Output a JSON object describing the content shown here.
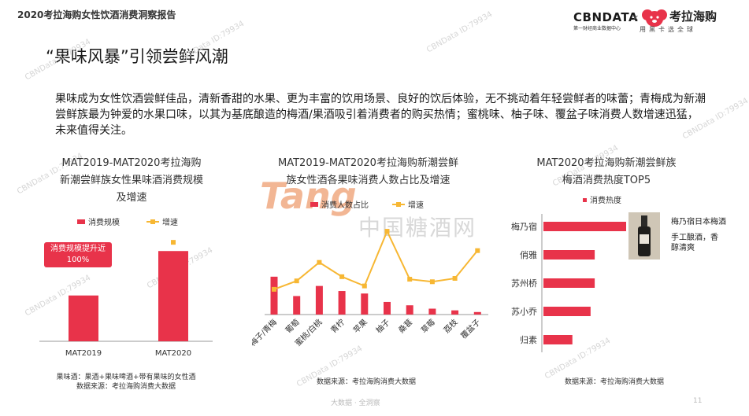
{
  "header": {
    "report_title": "2020考拉海购女性饮酒消费洞察报告",
    "cbn_logo": "CBNDATA",
    "cbn_sub": "第一财经商业数据中心",
    "logo_separator": "×",
    "brand_name": "考拉海购",
    "brand_slogan": "用黑卡选全球"
  },
  "page_heading": "“果味风暴”引领尝鲜风潮",
  "intro_text": "果味成为女性饮酒尝鲜佳品，清新香甜的水果、更为丰富的饮用场景、良好的饮后体验，无不挑动着年轻尝鲜者的味蕾；青梅成为新潮尝鲜族最为钟爱的水果口味，以其为基底酿造的梅酒/果酒吸引着消费者的购买热情；蜜桃味、柚子味、覆盆子味消费人数增速迅猛，未来值得关注。",
  "chart1": {
    "title_lines": [
      "MAT2019-MAT2020考拉海购",
      "新潮尝鲜族女性果味酒消费规模",
      "及增速"
    ],
    "callout": "消费规模提升近100%",
    "note_lines": [
      "果味酒：果酒+果味啤酒+带有果味的女性酒",
      "数据来源：考拉海购消费大数据"
    ]
  },
  "chart2": {
    "title_lines": [
      "MAT2019-MAT2020考拉海购新潮尝鲜",
      "族女性酒各果味消费人数占比及增速"
    ],
    "source": "数据来源：考拉海购消费大数据"
  },
  "chart3": {
    "title_lines": [
      "MAT2020考拉海购新潮尝鲜族",
      "梅酒消费热度TOP5"
    ],
    "product_name": "梅乃宿日本梅酒",
    "product_desc": "手工酿酒，香醇清爽",
    "source": "数据来源：考拉海购消费大数据"
  },
  "chart_data": [
    {
      "type": "bar",
      "categories": [
        "MAT2019",
        "MAT2020"
      ],
      "series": [
        {
          "name": "消费规模",
          "values": [
            1.0,
            1.97
          ]
        },
        {
          "name": "增速",
          "values": [
            null,
            2.16
          ]
        }
      ],
      "ylim": [
        0,
        2.3
      ],
      "legend": "top",
      "colors": {
        "bar": "#e8334a",
        "line": "#f7b733"
      }
    },
    {
      "type": "bar",
      "categories": [
        "梅子/青梅",
        "葡萄",
        "蜜桃/白桃",
        "青柠",
        "苹果",
        "柚子",
        "桑葚",
        "草莓",
        "荔枝",
        "覆盆子"
      ],
      "series": [
        {
          "name": "消费人数占比",
          "values": [
            0.45,
            0.22,
            0.34,
            0.28,
            0.25,
            0.15,
            0.11,
            0.07,
            0.05,
            0.03
          ]
        },
        {
          "name": "增速",
          "values": [
            0.3,
            0.4,
            0.62,
            0.45,
            0.34,
            0.99,
            0.42,
            0.39,
            0.43,
            0.76
          ]
        }
      ],
      "ylim": [
        0,
        1.0
      ],
      "legend": "top",
      "colors": {
        "bar": "#e8334a",
        "line": "#f7b733"
      }
    },
    {
      "type": "bar",
      "orientation": "horizontal",
      "categories": [
        "梅乃宿",
        "俏雅",
        "苏州桥",
        "苏小乔",
        "归素"
      ],
      "series": [
        {
          "name": "消费热度",
          "values": [
            100,
            62,
            62,
            57,
            35
          ]
        }
      ],
      "xlim": [
        0,
        100
      ],
      "legend": "top",
      "colors": {
        "bar": "#e8334a"
      }
    }
  ],
  "footer": {
    "center": "大数据 · 全洞察",
    "page_number": "11"
  },
  "watermark": {
    "text": "CBNData ID:79934",
    "center": "中国糖酒网",
    "tang": "Tang"
  }
}
